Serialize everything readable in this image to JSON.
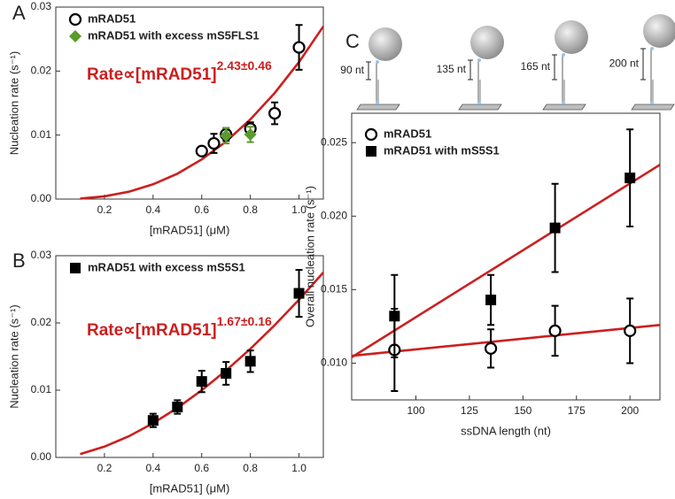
{
  "chart_data": [
    {
      "type": "scatter",
      "panel_label": "A",
      "x_label": "[mRAD51] (μM)",
      "y_label": "Nucleation rate (s⁻¹)",
      "xlim": [
        0,
        1.1
      ],
      "xticks": [
        0.2,
        0.4,
        0.6,
        0.8,
        {
          "value": 1,
          "label": "1.0"
        }
      ],
      "ylim": [
        0,
        0.03
      ],
      "yticks": [
        {
          "value": 0,
          "label": "0.00"
        },
        0.01,
        0.02,
        0.03
      ],
      "legend": "upper left",
      "annotation": "Rate∝[mRAD51]",
      "annotation_exponent": "2.43±0.46",
      "series": [
        {
          "name": "mRAD51",
          "color": "#000000",
          "marker": "open-circle",
          "x": [
            0.6,
            0.65,
            0.7,
            0.8,
            0.9,
            1.0
          ],
          "values": [
            0.0075,
            0.0087,
            0.0101,
            0.011,
            0.0134,
            0.0237
          ],
          "errors": [
            0.0004,
            0.0015,
            0.001,
            0.001,
            0.0017,
            0.0035
          ]
        },
        {
          "name": "mRAD51 with excess mS5FLS1",
          "color": "#5b9a2c",
          "marker": "diamond",
          "x": [
            0.7,
            0.8
          ],
          "values": [
            0.0099,
            0.0101
          ],
          "errors": [
            0.0012,
            0.0012
          ]
        }
      ],
      "fits": [
        {
          "color": "#cc1f1f",
          "x": [
            0.1,
            0.2,
            0.3,
            0.4,
            0.5,
            0.6,
            0.7,
            0.8,
            0.9,
            1.0,
            1.1
          ],
          "values": [
            8e-05,
            0.00043,
            0.00115,
            0.00231,
            0.00397,
            0.00619,
            0.00899,
            0.01244,
            0.01657,
            0.0214,
            0.02698
          ]
        }
      ]
    },
    {
      "type": "scatter",
      "panel_label": "B",
      "x_label": "[mRAD51] (μM)",
      "y_label": "Nucleation rate (s⁻¹)",
      "xlim": [
        0,
        1.1
      ],
      "xticks": [
        0.2,
        0.4,
        0.6,
        0.8,
        {
          "value": 1,
          "label": "1.0"
        }
      ],
      "ylim": [
        0,
        0.03
      ],
      "yticks": [
        {
          "value": 0,
          "label": "0.00"
        },
        0.01,
        0.02,
        0.03
      ],
      "legend": "upper left",
      "annotation": "Rate∝[mRAD51]",
      "annotation_exponent": "1.67±0.16",
      "series": [
        {
          "name": "mRAD51 with excess mS5S1",
          "color": "#000000",
          "marker": "square",
          "x": [
            0.4,
            0.5,
            0.6,
            0.7,
            0.8,
            1.0
          ],
          "values": [
            0.0055,
            0.0075,
            0.0113,
            0.0125,
            0.0143,
            0.0244
          ],
          "errors": [
            0.001,
            0.001,
            0.0016,
            0.0017,
            0.0016,
            0.0035
          ]
        }
      ],
      "fits": [
        {
          "color": "#cc1f1f",
          "x": [
            0.1,
            0.2,
            0.3,
            0.4,
            0.5,
            0.6,
            0.7,
            0.8,
            0.9,
            1.0,
            1.1
          ],
          "values": [
            0.0005,
            0.0016,
            0.00314,
            0.00508,
            0.00737,
            0.00999,
            0.01292,
            0.01615,
            0.01967,
            0.02345,
            0.0275
          ]
        }
      ]
    },
    {
      "type": "scatter",
      "panel_label": "C",
      "x_label": "ssDNA length (nt)",
      "y_label": "Overall nucleation rate (s⁻¹)",
      "xlim": [
        70,
        214
      ],
      "xticks": [
        100,
        125,
        150,
        175,
        200
      ],
      "ylim": [
        0.0075,
        0.027
      ],
      "yticks": [
        {
          "value": 0.01,
          "label": "0.010"
        },
        {
          "value": 0.015,
          "label": "0.015"
        },
        {
          "value": 0.02,
          "label": "0.020"
        },
        {
          "value": 0.025,
          "label": "0.025"
        }
      ],
      "legend": "upper left",
      "diagram_labels": [
        "90 nt",
        "135 nt",
        "165 nt",
        "200 nt"
      ],
      "series": [
        {
          "name": "mRAD51",
          "color": "#000000",
          "marker": "open-circle",
          "x": [
            90,
            135,
            165,
            200
          ],
          "values": [
            0.0109,
            0.011,
            0.0122,
            0.0122
          ],
          "errors": [
            0.0028,
            0.0013,
            0.0017,
            0.0022
          ]
        },
        {
          "name": "mRAD51 with mS5S1",
          "color": "#000000",
          "marker": "square",
          "x": [
            90,
            135,
            165,
            200
          ],
          "values": [
            0.0132,
            0.0143,
            0.0192,
            0.0226
          ],
          "errors": [
            0.0028,
            0.0017,
            0.003,
            0.0033
          ]
        }
      ],
      "fits": [
        {
          "color": "#cc1f1f",
          "x": [
            70,
            214
          ],
          "values": [
            0.0105,
            0.0126
          ]
        },
        {
          "color": "#cc1f1f",
          "x": [
            70,
            214
          ],
          "values": [
            0.0104,
            0.0235
          ]
        }
      ]
    }
  ]
}
